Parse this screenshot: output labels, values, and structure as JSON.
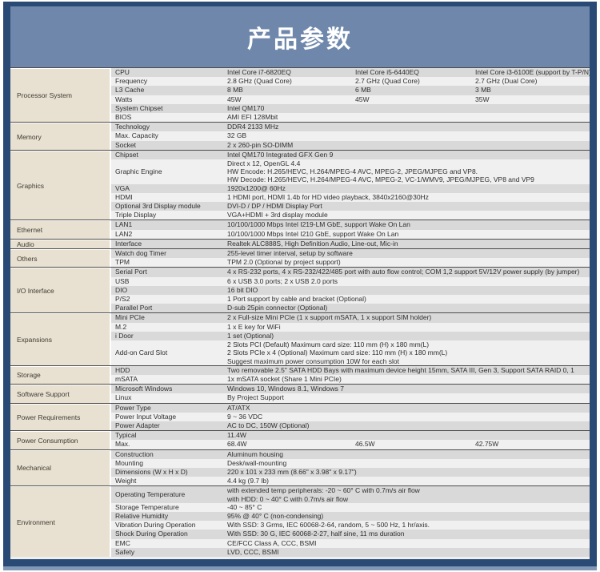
{
  "header": {
    "title": "产品参数"
  },
  "colors": {
    "frame_navy": "#2a4a76",
    "banner_blue": "#6e87ab",
    "category_beige": "#e8e0d0",
    "row_dark": "#d9d9d9",
    "row_light": "#eff0ef",
    "footer_strip_blue": "#8197b6",
    "title_text": "#ffffff"
  },
  "table": {
    "sections": [
      {
        "category": "Processor System",
        "rows": [
          {
            "label": "CPU",
            "cols": [
              [
                "Intel Core i7-6820EQ"
              ],
              [
                "Intel Core i5-6440EQ"
              ],
              [
                "Intel Core i3-6100E (support by T-P/N)"
              ]
            ]
          },
          {
            "label": "Frequency",
            "cols": [
              [
                "2.8 GHz (Quad Core)"
              ],
              [
                "2.7 GHz (Quad Core)"
              ],
              [
                "2.7 GHz (Dual Core)"
              ]
            ]
          },
          {
            "label": "L3 Cache",
            "cols": [
              [
                "8 MB"
              ],
              [
                "6 MB"
              ],
              [
                "3 MB"
              ]
            ]
          },
          {
            "label": "Watts",
            "cols": [
              [
                "45W"
              ],
              [
                "45W"
              ],
              [
                "35W"
              ]
            ]
          },
          {
            "label": "System Chipset",
            "cols": [
              [
                "Intel QM170"
              ]
            ]
          },
          {
            "label": "BIOS",
            "cols": [
              [
                "AMI EFI 128Mbit"
              ]
            ]
          }
        ]
      },
      {
        "category": "Memory",
        "rows": [
          {
            "label": "Technology",
            "cols": [
              [
                "DDR4 2133 MHz"
              ]
            ]
          },
          {
            "label": "Max. Capacity",
            "cols": [
              [
                "32 GB"
              ]
            ]
          },
          {
            "label": "Socket",
            "cols": [
              [
                "2 x 260-pin SO-DIMM"
              ]
            ]
          }
        ]
      },
      {
        "category": "Graphics",
        "rows": [
          {
            "label": "Chipset",
            "cols": [
              [
                "Intel QM170 Integrated GFX Gen 9"
              ]
            ]
          },
          {
            "label": "Graphic Engine",
            "cols": [
              [
                "Direct x 12, OpenGL 4.4",
                "HW Encode: H.265/HEVC, H.264/MPEG-4 AVC, MPEG-2, JPEG/MJPEG and VP8.",
                "HW Decode: H.265/HEVC, H.264/MPEG-4 AVC, MPEG-2, VC-1/WMV9, JPEG/MJPEG, VP8 and VP9"
              ]
            ]
          },
          {
            "label": "VGA",
            "cols": [
              [
                "1920x1200@ 60Hz"
              ]
            ]
          },
          {
            "label": "HDMI",
            "cols": [
              [
                "1 HDMI port, HDMI 1.4b for HD video playback, 3840x2160@30Hz"
              ]
            ]
          },
          {
            "label": "Optional 3rd Display module",
            "cols": [
              [
                "DVI-D / DP / HDMI Display Port"
              ]
            ]
          },
          {
            "label": "Triple Display",
            "cols": [
              [
                "VGA+HDMI + 3rd display module"
              ]
            ]
          }
        ]
      },
      {
        "category": "Ethernet",
        "rows": [
          {
            "label": "LAN1",
            "cols": [
              [
                "10/100/1000 Mbps Intel I219-LM GbE, support Wake On Lan"
              ]
            ]
          },
          {
            "label": "LAN2",
            "cols": [
              [
                "10/100/1000 Mbps Intel I210 GbE, support Wake On Lan"
              ]
            ]
          }
        ]
      },
      {
        "category": "Audio",
        "rows": [
          {
            "label": "Interface",
            "cols": [
              [
                "Realtek ALC888S, High Definition Audio, Line-out, Mic-in"
              ]
            ]
          }
        ]
      },
      {
        "category": "Others",
        "rows": [
          {
            "label": "Watch dog Timer",
            "cols": [
              [
                "255-level timer interval, setup by software"
              ]
            ]
          },
          {
            "label": "TPM",
            "cols": [
              [
                "TPM 2.0 (Optional by project support)"
              ]
            ]
          }
        ]
      },
      {
        "category": "I/O Interface",
        "rows": [
          {
            "label": "Serial Port",
            "cols": [
              [
                "4 x RS-232 ports, 4 x RS-232/422/485 port with auto flow control; COM 1,2 support 5V/12V power supply (by jumper)"
              ]
            ]
          },
          {
            "label": "USB",
            "cols": [
              [
                "6 x USB 3.0 ports; 2 x USB 2.0 ports"
              ]
            ]
          },
          {
            "label": "DIO",
            "cols": [
              [
                "16 bit DIO"
              ]
            ]
          },
          {
            "label": "P/S2",
            "cols": [
              [
                "1 Port support by cable and bracket (Optional)"
              ]
            ]
          },
          {
            "label": "Parallel Port",
            "cols": [
              [
                "D-sub 25pin connector (Optional)"
              ]
            ]
          }
        ]
      },
      {
        "category": "Expansions",
        "rows": [
          {
            "label": "Mini PCIe",
            "cols": [
              [
                "2 x Full-size Mini PCIe (1 x support mSATA, 1 x support SIM holder)"
              ]
            ]
          },
          {
            "label": "M.2",
            "cols": [
              [
                "1 x E key for WiFi"
              ]
            ]
          },
          {
            "label": "i Door",
            "cols": [
              [
                "1 set (Optional)"
              ]
            ]
          },
          {
            "label": "Add-on Card Slot",
            "cols": [
              [
                "2 Slots PCI (Default) Maximum card size: 110 mm (H) x 180 mm(L)",
                "2 Slots PCIe x 4 (Optional) Maximum card size: 110 mm (H) x 180 mm(L)",
                "Suggest maximum power consumption 10W for each slot"
              ]
            ]
          }
        ]
      },
      {
        "category": "Storage",
        "rows": [
          {
            "label": "HDD",
            "cols": [
              [
                "Two removable 2.5\" SATA HDD Bays with maximum device height 15mm, SATA III, Gen 3, Support SATA RAID 0, 1"
              ]
            ]
          },
          {
            "label": "mSATA",
            "cols": [
              [
                "1x mSATA socket (Share 1 Mini PCIe)"
              ]
            ]
          }
        ]
      },
      {
        "category": "Software Support",
        "rows": [
          {
            "label": "Microsoft Windows",
            "cols": [
              [
                "Windows 10, Windows 8.1, Windows 7"
              ]
            ]
          },
          {
            "label": "Linux",
            "cols": [
              [
                "By Project Support"
              ]
            ]
          }
        ]
      },
      {
        "category": "Power Requirements",
        "rows": [
          {
            "label": "Power Type",
            "cols": [
              [
                "AT/ATX"
              ]
            ]
          },
          {
            "label": "Power Input Voltage",
            "cols": [
              [
                "9 ~ 36 VDC"
              ]
            ]
          },
          {
            "label": "Power Adapter",
            "cols": [
              [
                "AC to DC, 150W (Optional)"
              ]
            ]
          }
        ]
      },
      {
        "category": "Power Consumption",
        "rows": [
          {
            "label": "Typical",
            "cols": [
              [
                "11.4W"
              ]
            ]
          },
          {
            "label": "Max.",
            "cols": [
              [
                "68.4W"
              ],
              [
                "46.5W"
              ],
              [
                "42.75W"
              ]
            ]
          }
        ]
      },
      {
        "category": "Mechanical",
        "rows": [
          {
            "label": "Construction",
            "cols": [
              [
                "Aluminum housing"
              ]
            ]
          },
          {
            "label": "Mounting",
            "cols": [
              [
                "Desk/wall-mounting"
              ]
            ]
          },
          {
            "label": "Dimensions (W x H x D)",
            "cols": [
              [
                "220 x 101 x 233 mm (8.66\" x 3.98\" x 9.17\")"
              ]
            ]
          },
          {
            "label": "Weight",
            "cols": [
              [
                "4.4 kg (9.7 lb)"
              ]
            ]
          }
        ]
      },
      {
        "category": "Environment",
        "rows": [
          {
            "label": "Operating Temperature",
            "cols": [
              [
                "with extended temp peripherals: -20 ~ 60° C with 0.7m/s air flow",
                "with HDD: 0 ~ 40° C with 0.7m/s air flow"
              ]
            ]
          },
          {
            "label": "Storage Temperature",
            "cols": [
              [
                "-40 ~ 85° C"
              ]
            ]
          },
          {
            "label": "Relative Humidity",
            "cols": [
              [
                "95% @ 40° C (non-condensing)"
              ]
            ]
          },
          {
            "label": "Vibration During Operation",
            "cols": [
              [
                "With SSD: 3 Grms, IEC 60068-2-64, random, 5 ~ 500 Hz, 1 hr/axis."
              ]
            ]
          },
          {
            "label": "Shock During Operation",
            "cols": [
              [
                "With SSD: 30 G, IEC 60068-2-27, half sine, 11 ms duration"
              ]
            ]
          },
          {
            "label": "EMC",
            "cols": [
              [
                "CE/FCC Class A, CCC, BSMI"
              ]
            ]
          },
          {
            "label": "Safety",
            "cols": [
              [
                "LVD, CCC, BSMI"
              ]
            ]
          }
        ]
      }
    ]
  }
}
